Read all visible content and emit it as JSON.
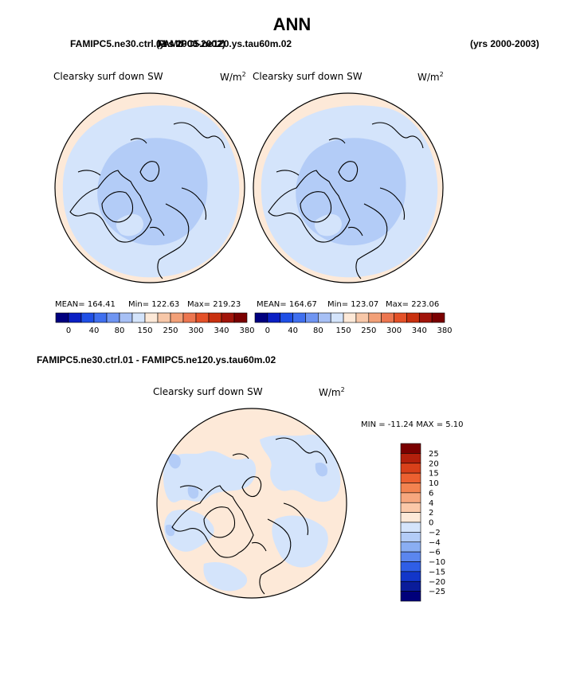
{
  "chart_data": {
    "type": "heatmap",
    "page_title": "ANN",
    "top_panels_header": {
      "left_case": "FAMIPC5.ne30.ctrl.01",
      "overlap_yrs": "(yrs 2000-2002)",
      "right_case": "FAMIPC5.ne120.ys.tau60m.02",
      "right_yrs": "(yrs 2000-2003)"
    },
    "panels": [
      {
        "variable": "Clearsky surf down SW",
        "units": "W/m",
        "units_sup": "2",
        "mean_label": "MEAN= 164.41",
        "min_label": "Min= 122.63",
        "max_label": "Max= 219.23",
        "mean": 164.41,
        "min": 122.63,
        "max": 219.23
      },
      {
        "variable": "Clearsky surf down SW",
        "units": "W/m",
        "units_sup": "2",
        "mean_label": "MEAN= 164.67",
        "min_label": "Min= 123.07",
        "max_label": "Max= 223.06",
        "mean": 164.67,
        "min": 123.07,
        "max": 223.06
      }
    ],
    "abs_colorbar": {
      "levels": [
        "0",
        "40",
        "80",
        "150",
        "250",
        "300",
        "340",
        "380"
      ],
      "colors": [
        "#00007f",
        "#0a1fc4",
        "#1f4fe6",
        "#3f6fef",
        "#6f95f2",
        "#a7c0f5",
        "#d4e4fb",
        "#fde9d8",
        "#f7c7a8",
        "#f2a078",
        "#ec7650",
        "#e45128",
        "#c9300f",
        "#a1140a",
        "#7a0000"
      ]
    },
    "diff_panel": {
      "header": "FAMIPC5.ne30.ctrl.01 - FAMIPC5.ne120.ys.tau60m.02",
      "variable": "Clearsky surf down SW",
      "units": "W/m",
      "units_sup": "2",
      "minmax_label": "MIN = -11.24 MAX =   5.10",
      "min": -11.24,
      "max": 5.1
    },
    "diff_colorbar": {
      "levels": [
        "25",
        "20",
        "15",
        "10",
        "6",
        "4",
        "2",
        "0",
        "−2",
        "−4",
        "−6",
        "−10",
        "−15",
        "−20",
        "−25"
      ],
      "colors": [
        "#7a0000",
        "#b3200c",
        "#d8401a",
        "#ec6030",
        "#f38350",
        "#f7a77e",
        "#fbc8a8",
        "#fde9d8",
        "#d4e4fb",
        "#b3ccf7",
        "#8aaef3",
        "#5b86ee",
        "#2f5ee6",
        "#1236c9",
        "#0a1c9a",
        "#00007a"
      ]
    },
    "map_colors": {
      "ocean_edge": "#fde9d8",
      "light_blue": "#d4e4fb",
      "mid_blue": "#b3ccf7",
      "diff_pos": "#fde9d8",
      "diff_neg": "#d4e4fb",
      "diff_neg2": "#b3ccf7"
    }
  }
}
